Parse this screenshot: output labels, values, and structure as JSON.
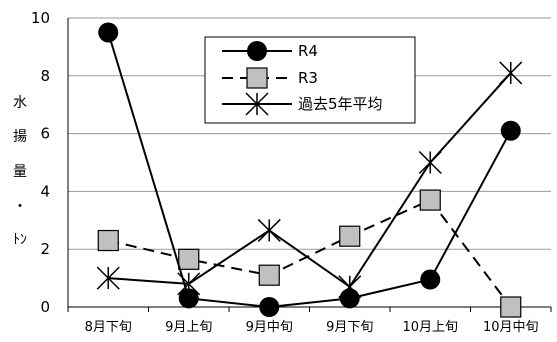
{
  "chart_data": {
    "type": "line",
    "categories": [
      "8月下旬",
      "9月上旬",
      "9月中旬",
      "9月下旬",
      "10月上旬",
      "10月中旬"
    ],
    "ylim": [
      0,
      10
    ],
    "yticks": [
      0,
      2,
      4,
      6,
      8,
      10
    ],
    "ylabel_chars": [
      "水",
      "揚",
      "量",
      "・",
      "ﾄﾝ"
    ],
    "grid": "horizontal",
    "legend_position": "top-center",
    "series": [
      {
        "name": "R4",
        "values": [
          9.5,
          0.3,
          0.0,
          0.3,
          0.95,
          6.1
        ],
        "line": "solid",
        "marker": "filled-circle",
        "color": "#000000"
      },
      {
        "name": "R3",
        "values": [
          2.3,
          1.65,
          1.1,
          2.45,
          3.7,
          0.0
        ],
        "line": "dashed",
        "marker": "gray-square",
        "color": "#000000",
        "marker_fill": "#c0c0c0"
      },
      {
        "name": "過去5年平均",
        "values": [
          1.0,
          0.8,
          2.65,
          0.7,
          5.0,
          8.1
        ],
        "line": "solid",
        "marker": "asterisk",
        "color": "#000000"
      }
    ]
  }
}
